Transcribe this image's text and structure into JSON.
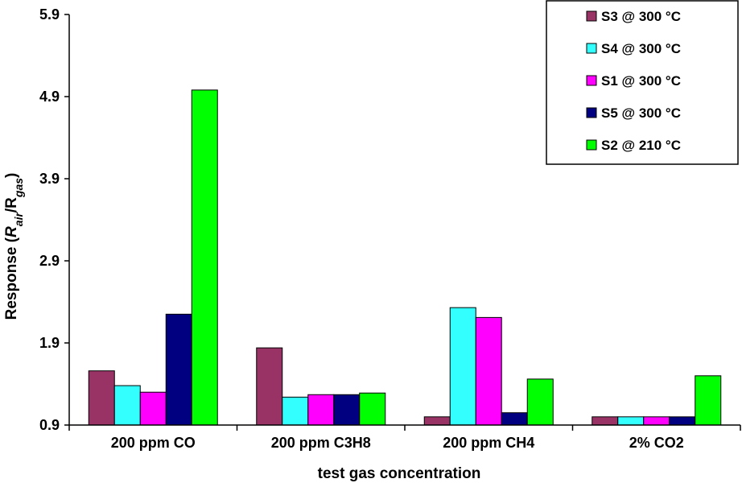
{
  "chart_data": {
    "type": "bar",
    "categories": [
      "200 ppm CO",
      "200 ppm C3H8",
      "200 ppm CH4",
      "2% CO2"
    ],
    "series": [
      {
        "name": "S3 @ 300 °C",
        "color": "#993366",
        "values": [
          1.56,
          1.84,
          1.0,
          1.0
        ]
      },
      {
        "name": "S4 @ 300 °C",
        "color": "#33ffff",
        "values": [
          1.38,
          1.24,
          2.33,
          1.0
        ]
      },
      {
        "name": "S1 @ 300 °C",
        "color": "#ff00ff",
        "values": [
          1.3,
          1.27,
          2.21,
          1.0
        ]
      },
      {
        "name": "S5 @ 300 °C",
        "color": "#000080",
        "values": [
          2.25,
          1.27,
          1.05,
          1.0
        ]
      },
      {
        "name": "S2 @ 210 °C",
        "color": "#00ff00",
        "values": [
          4.98,
          1.29,
          1.46,
          1.5
        ]
      }
    ],
    "yticks": [
      "0.9",
      "1.9",
      "2.9",
      "3.9",
      "4.9",
      "5.9"
    ],
    "ylim": [
      0.9,
      5.9
    ],
    "xlabel": "test gas concentration",
    "ylabel": {
      "prefix": "Response  (",
      "r1": "R",
      "sub1": "air",
      "mid": "/R",
      "sub2": "gas",
      "suffix": ")"
    },
    "legend_position": "top-right",
    "grid": false
  }
}
